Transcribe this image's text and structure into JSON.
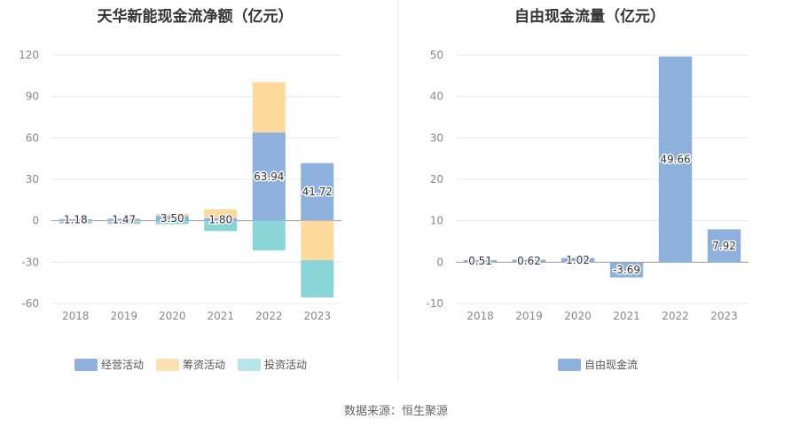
{
  "source_label": "数据来源：恒生聚源",
  "chart_data": [
    {
      "type": "bar",
      "stacked": true,
      "title": "天华新能现金流净额（亿元）",
      "categories": [
        "2018",
        "2019",
        "2020",
        "2021",
        "2022",
        "2023"
      ],
      "ylim": [
        -60,
        120
      ],
      "yticks": [
        120,
        90,
        60,
        30,
        0,
        -30,
        -60
      ],
      "grid": true,
      "legend_position": "bottom",
      "series": [
        {
          "name": "经营活动",
          "color": "#8eb0dd",
          "values": [
            1.18,
            1.47,
            3.5,
            1.8,
            63.94,
            41.72
          ],
          "labels": [
            "1.18",
            "1.47",
            "3.50",
            "1.80",
            "63.94",
            "41.72"
          ]
        },
        {
          "name": "筹资活动",
          "color": "#fdd99b",
          "values": [
            -0.5,
            -0.6,
            1.5,
            6.5,
            36.5,
            -28.5
          ]
        },
        {
          "name": "投资活动",
          "color": "#89d5d8",
          "values": [
            -1.5,
            -1.8,
            -2.5,
            -7.5,
            -21.5,
            -27.0
          ]
        }
      ]
    },
    {
      "type": "bar",
      "title": "自由现金流量（亿元）",
      "categories": [
        "2018",
        "2019",
        "2020",
        "2021",
        "2022",
        "2023"
      ],
      "ylim": [
        -10,
        50
      ],
      "yticks": [
        50,
        40,
        30,
        20,
        10,
        0,
        -10
      ],
      "grid": true,
      "legend_position": "bottom",
      "series": [
        {
          "name": "自由现金流",
          "color": "#8eb0dd",
          "values": [
            0.51,
            0.62,
            1.02,
            -3.69,
            49.66,
            7.92
          ],
          "labels": [
            "0.51",
            "0.62",
            "1.02",
            "-3.69",
            "49.66",
            "7.92"
          ]
        }
      ]
    }
  ]
}
